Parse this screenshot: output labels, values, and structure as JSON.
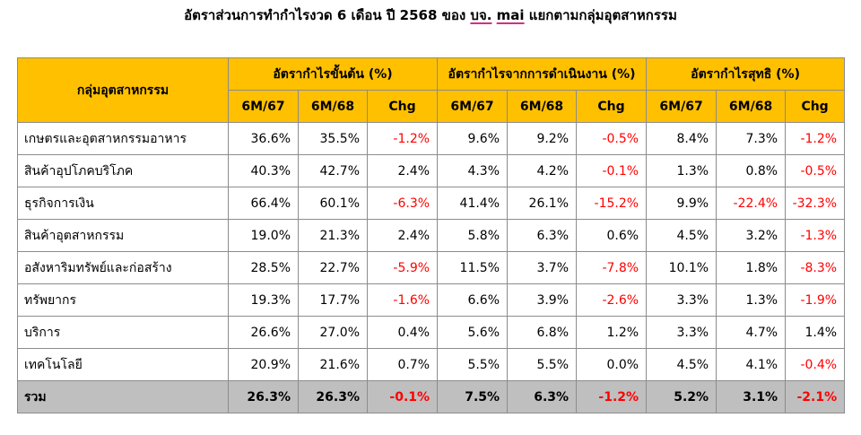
{
  "title": {
    "pre": "อัตราส่วนการทำกำไรงวด 6 เดือน ปี 2568  ของ ",
    "u1": "บจ.",
    "mid": " ",
    "u2": "mai",
    "post": " แยกตามกลุ่มอุตสาหกรรม"
  },
  "header": {
    "category": "กลุ่มอุตสาหกรรม",
    "groups": [
      "อัตรากำไรขั้นต้น (%)",
      "อัตรากำไรจากการดำเนินงาน (%)",
      "อัตรากำไรสุทธิ (%)"
    ],
    "sub": [
      "6M/67",
      "6M/68",
      "Chg"
    ]
  },
  "rows": [
    {
      "name": "เกษตรและอุตสาหกรรมอาหาร",
      "vals": [
        "36.6%",
        "35.5%",
        "-1.2%",
        "9.6%",
        "9.2%",
        "-0.5%",
        "8.4%",
        "7.3%",
        "-1.2%"
      ]
    },
    {
      "name": "สินค้าอุปโภคบริโภค",
      "vals": [
        "40.3%",
        "42.7%",
        "2.4%",
        "4.3%",
        "4.2%",
        "-0.1%",
        "1.3%",
        "0.8%",
        "-0.5%"
      ]
    },
    {
      "name": "ธุรกิจการเงิน",
      "vals": [
        "66.4%",
        "60.1%",
        "-6.3%",
        "41.4%",
        "26.1%",
        "-15.2%",
        "9.9%",
        "-22.4%",
        "-32.3%"
      ]
    },
    {
      "name": "สินค้าอุตสาหกรรม",
      "vals": [
        "19.0%",
        "21.3%",
        "2.4%",
        "5.8%",
        "6.3%",
        "0.6%",
        "4.5%",
        "3.2%",
        "-1.3%"
      ]
    },
    {
      "name": "อสังหาริมทรัพย์และก่อสร้าง",
      "vals": [
        "28.5%",
        "22.7%",
        "-5.9%",
        "11.5%",
        "3.7%",
        "-7.8%",
        "10.1%",
        "1.8%",
        "-8.3%"
      ]
    },
    {
      "name": "ทรัพยากร",
      "vals": [
        "19.3%",
        "17.7%",
        "-1.6%",
        "6.6%",
        "3.9%",
        "-2.6%",
        "3.3%",
        "1.3%",
        "-1.9%"
      ]
    },
    {
      "name": "บริการ",
      "vals": [
        "26.6%",
        "27.0%",
        "0.4%",
        "5.6%",
        "6.8%",
        "1.2%",
        "3.3%",
        "4.7%",
        "1.4%"
      ]
    },
    {
      "name": "เทคโนโลยี",
      "vals": [
        "20.9%",
        "21.6%",
        "0.7%",
        "5.5%",
        "5.5%",
        "0.0%",
        "4.5%",
        "4.1%",
        "-0.4%"
      ]
    }
  ],
  "total": {
    "name": "รวม",
    "vals": [
      "26.3%",
      "26.3%",
      "-0.1%",
      "7.5%",
      "6.3%",
      "-1.2%",
      "5.2%",
      "3.1%",
      "-2.1%"
    ]
  },
  "colors": {
    "header_bg": "#ffc000",
    "total_bg": "#bfbfbf",
    "negative": "#ff0000"
  }
}
